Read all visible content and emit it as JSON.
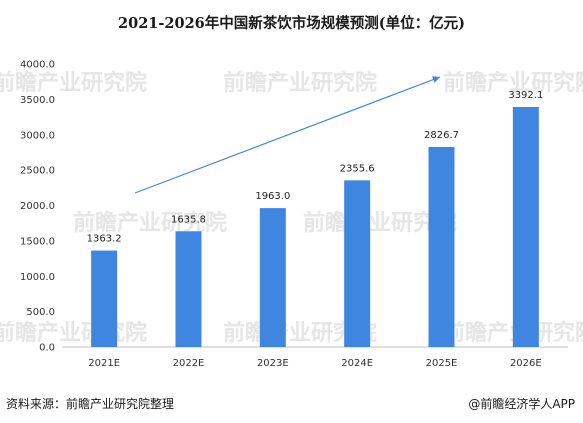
{
  "chart_data": {
    "type": "bar",
    "title": "2021-2026年中国新茶饮市场规模预测(单位：亿元)",
    "categories": [
      "2021E",
      "2022E",
      "2023E",
      "2024E",
      "2025E",
      "2026E"
    ],
    "values": [
      1363.2,
      1635.8,
      1963.0,
      2355.6,
      2826.7,
      3392.1
    ],
    "value_labels": [
      "1363.2",
      "1635.8",
      "1963.0",
      "2355.6",
      "2826.7",
      "3392.1"
    ],
    "y_ticks": [
      "0.0",
      "500.0",
      "1000.0",
      "1500.0",
      "2000.0",
      "2500.0",
      "3000.0",
      "3500.0",
      "4000.0"
    ],
    "ylim": [
      0,
      4000
    ],
    "grid": false,
    "legend": "none",
    "bar_color": "#3f86e0",
    "trend_arrow": true,
    "arrow_color": "#3f86e0"
  },
  "source_note": "资料来源：前瞻产业研究院整理",
  "credit": "@前瞻经济学人APP",
  "watermark": "前瞻产业研究院"
}
